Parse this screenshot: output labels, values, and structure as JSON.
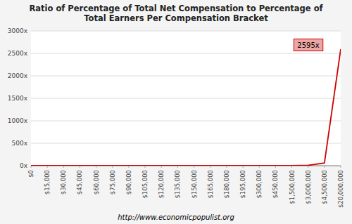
{
  "chart_data": {
    "type": "line",
    "title": "Ratio of Percentage of Total Net Compensation to Percentage of\nTotal Earners Per Compensation Bracket",
    "categories": [
      "$0",
      "$15,000",
      "$30,000",
      "$45,000",
      "$60,000",
      "$75,000",
      "$90,000",
      "$105,000",
      "$120,000",
      "$135,000",
      "$150,000",
      "$165,000",
      "$180,000",
      "$195,000",
      "$300,000",
      "$450,000",
      "$1,500,000",
      "$3,000,000",
      "$4,500,000",
      "$20,000,000"
    ],
    "values": [
      0.05,
      0.07,
      0.09,
      0.11,
      0.13,
      0.15,
      0.17,
      0.19,
      0.21,
      0.23,
      0.25,
      0.27,
      0.3,
      0.33,
      0.5,
      0.8,
      2.5,
      8.0,
      60,
      2595
    ],
    "color": "#cc0000",
    "ylim": [
      0,
      3000
    ],
    "yticks": [
      {
        "value": 0,
        "label": "0x"
      },
      {
        "value": 500,
        "label": "500x"
      },
      {
        "value": 1000,
        "label": "1000x"
      },
      {
        "value": 1500,
        "label": "1500x"
      },
      {
        "value": 2000,
        "label": "2000x"
      },
      {
        "value": 2500,
        "label": "2500x"
      },
      {
        "value": 3000,
        "label": "3000x"
      }
    ],
    "grid": true,
    "annotation": "2595x",
    "footer": "http://www.economicpopulist.org"
  }
}
